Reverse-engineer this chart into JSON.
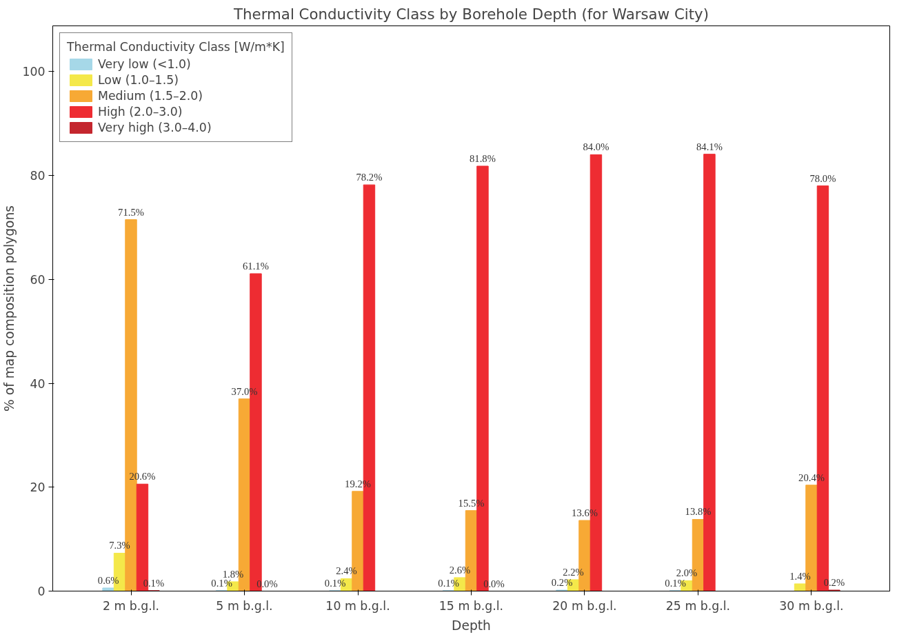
{
  "chart_data": {
    "type": "bar",
    "title": "Thermal Conductivity Class by Borehole Depth (for Warsaw City)",
    "xlabel": "Depth",
    "ylabel": "% of map composition polygons",
    "legend_title": "Thermal Conductivity Class [W/m*K]",
    "categories": [
      "2 m b.g.l.",
      "5 m b.g.l.",
      "10 m b.g.l.",
      "15 m b.g.l.",
      "20 m b.g.l.",
      "25 m b.g.l.",
      "30 m b.g.l."
    ],
    "series": [
      {
        "name": "Very low (<1.0)",
        "color": "#a6d8e8",
        "values": [
          0.6,
          0.1,
          0.1,
          0.1,
          0.2,
          0.1,
          null
        ],
        "value_labels": [
          "0.6%",
          "0.1%",
          "0.1%",
          "0.1%",
          "0.2%",
          "0.1%",
          null
        ]
      },
      {
        "name": "Low (1.0–1.5)",
        "color": "#f4e84a",
        "values": [
          7.3,
          1.8,
          2.4,
          2.6,
          2.2,
          2.0,
          1.4
        ],
        "value_labels": [
          "7.3%",
          "1.8%",
          "2.4%",
          "2.6%",
          "2.2%",
          "2.0%",
          "1.4%"
        ]
      },
      {
        "name": "Medium (1.5–2.0)",
        "color": "#f7a935",
        "values": [
          71.5,
          37.0,
          19.2,
          15.5,
          13.6,
          13.8,
          20.4
        ],
        "value_labels": [
          "71.5%",
          "37.0%",
          "19.2%",
          "15.5%",
          "13.6%",
          "13.8%",
          "20.4%"
        ]
      },
      {
        "name": "High (2.0–3.0)",
        "color": "#ee2c32",
        "values": [
          20.6,
          61.1,
          78.2,
          81.8,
          84.0,
          84.1,
          78.0
        ],
        "value_labels": [
          "20.6%",
          "61.1%",
          "78.2%",
          "81.8%",
          "84.0%",
          "84.1%",
          "78.0%"
        ]
      },
      {
        "name": "Very high (3.0–4.0)",
        "color": "#c4262e",
        "values": [
          0.1,
          0.0,
          null,
          0.0,
          null,
          null,
          0.2
        ],
        "value_labels": [
          "0.1%",
          "0.0%",
          null,
          "0.0%",
          null,
          null,
          "0.2%"
        ]
      }
    ],
    "ylim": [
      0,
      108.8
    ],
    "yticks": [
      0,
      20,
      40,
      60,
      80,
      100
    ],
    "grid": false,
    "legend": "top left"
  }
}
